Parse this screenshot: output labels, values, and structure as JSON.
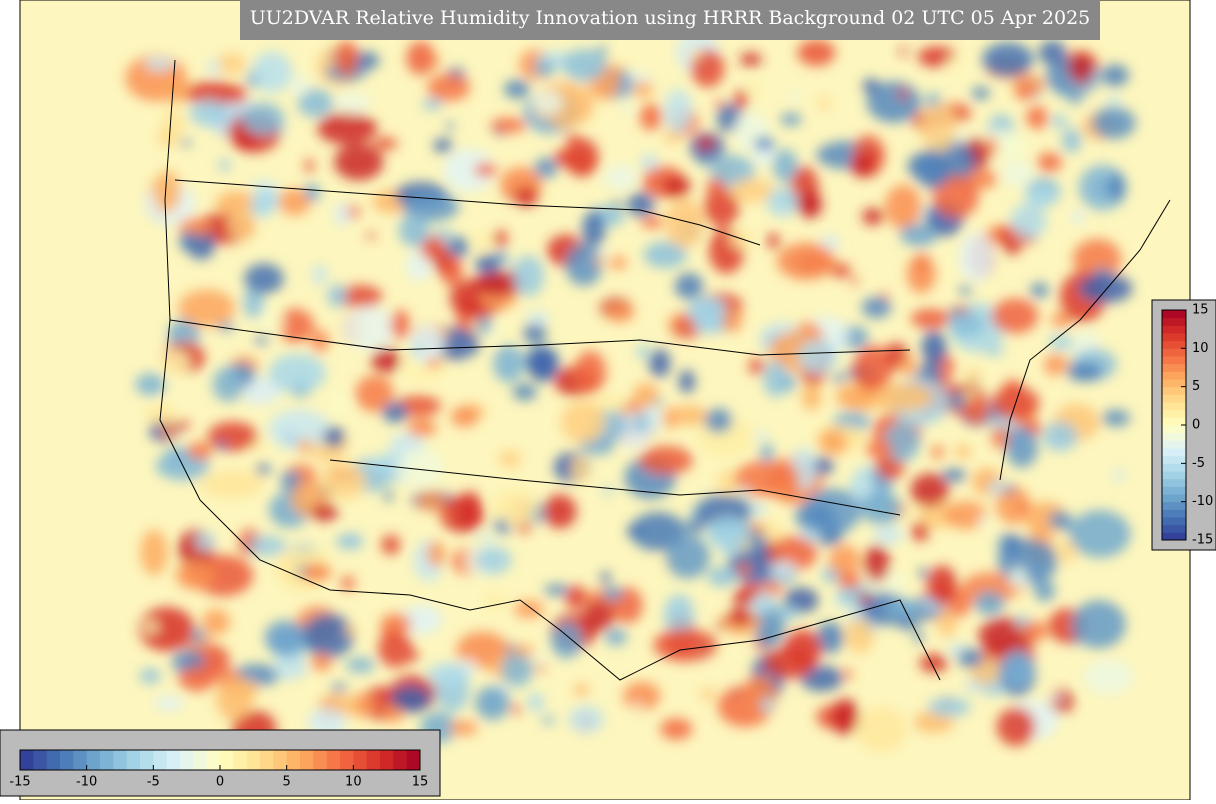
{
  "title": "UU2DVAR Relative Humidity Innovation using HRRR Background 02 UTC 05 Apr 2025",
  "colorbar": {
    "lim": [
      -15,
      15
    ],
    "ticks": [
      -15,
      -10,
      -5,
      0,
      5,
      10,
      15
    ],
    "colors": [
      "#313695",
      "#4575b4",
      "#74add1",
      "#abd9e9",
      "#e0f3f8",
      "#ffffbf",
      "#fee090",
      "#fdae61",
      "#f46d43",
      "#d73027",
      "#a50026"
    ]
  }
}
